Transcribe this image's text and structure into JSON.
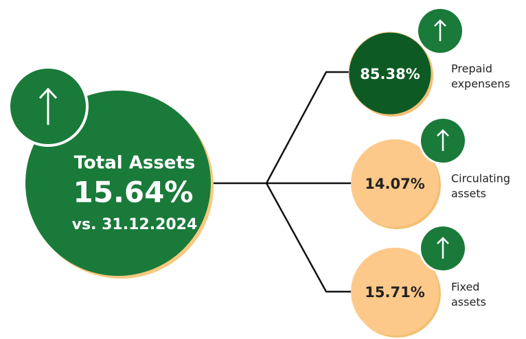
{
  "main": {
    "title": "Total Assets",
    "value": "15.64%",
    "subtitle": "vs. 31.12.2024"
  },
  "nodes": [
    {
      "value": "85.38%",
      "label": [
        "Prepaid",
        "expensens"
      ]
    },
    {
      "value": "14.07%",
      "label": [
        "Circulating",
        "assets"
      ]
    },
    {
      "value": "15.71%",
      "label": [
        "Fixed",
        "assets"
      ]
    }
  ]
}
